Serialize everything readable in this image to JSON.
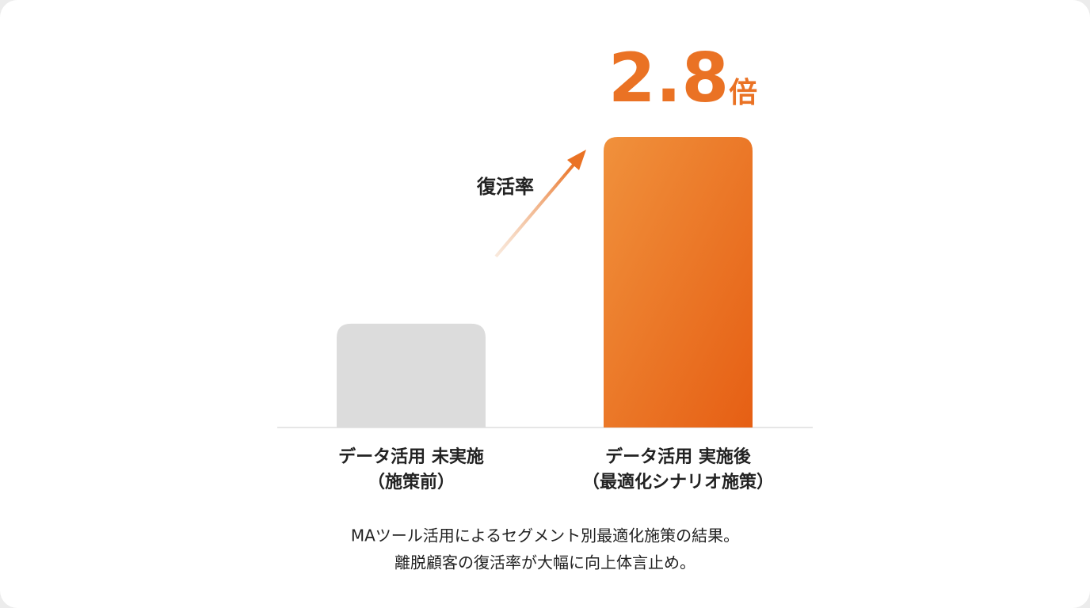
{
  "chart_data": {
    "type": "bar",
    "categories": [
      [
        "データ活用 未実施",
        "（施策前）"
      ],
      [
        "データ活用 実施後",
        "（最適化シナリオ施策）"
      ]
    ],
    "values": [
      1,
      2.8
    ],
    "value_labels": [
      null,
      "2.8倍"
    ],
    "colors": [
      "#dcdcdc",
      "#ea7224"
    ],
    "annotation": "復活率",
    "caption": [
      "MAツール活用によるセグメント別最適化施策の結果。",
      "離脱顧客の復活率が大幅に向上体言止め。"
    ]
  }
}
